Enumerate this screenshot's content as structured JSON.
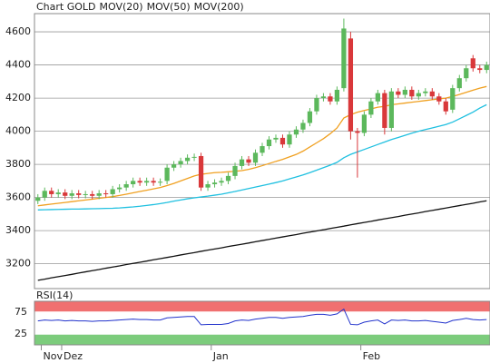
{
  "chart_data": [
    {
      "type": "candlestick",
      "title": "Chart GOLD",
      "title_color": "#e0452a",
      "categories": [
        null,
        "Nov",
        null,
        null,
        "Dez",
        null,
        null,
        null,
        null,
        null,
        null,
        null,
        null,
        null,
        null,
        null,
        null,
        null,
        null,
        null,
        null,
        null,
        null,
        null,
        null,
        null,
        "Jan",
        null,
        null,
        null,
        null,
        null,
        null,
        null,
        null,
        null,
        null,
        null,
        null,
        null,
        null,
        null,
        null,
        null,
        null,
        null,
        null,
        null,
        "Feb",
        null,
        null,
        null,
        null,
        null,
        null,
        null,
        null,
        null,
        null,
        null,
        null,
        null,
        null,
        null,
        null,
        null,
        null
      ],
      "open": [
        3580,
        3600,
        3640,
        3620,
        3630,
        3610,
        3625,
        3615,
        3620,
        3610,
        3625,
        3620,
        3650,
        3660,
        3680,
        3700,
        3690,
        3700,
        3690,
        3700,
        3780,
        3800,
        3820,
        3840,
        3850,
        3660,
        3680,
        3690,
        3700,
        3730,
        3790,
        3830,
        3810,
        3870,
        3910,
        3950,
        3960,
        3920,
        3980,
        4010,
        4050,
        4120,
        4200,
        4210,
        4180,
        4260,
        4560,
        4000,
        3990,
        4100,
        4180,
        4230,
        4020,
        4240,
        4220,
        4250,
        4210,
        4230,
        4240,
        4210,
        4180,
        4130,
        4260,
        4320,
        4440,
        4380,
        4370
      ],
      "high": [
        3620,
        3660,
        3660,
        3650,
        3650,
        3645,
        3645,
        3640,
        3640,
        3645,
        3645,
        3670,
        3680,
        3700,
        3720,
        3720,
        3720,
        3720,
        3715,
        3800,
        3820,
        3840,
        3860,
        3865,
        3870,
        3700,
        3710,
        3720,
        3750,
        3810,
        3850,
        3850,
        3890,
        3930,
        3970,
        3980,
        3980,
        4000,
        4030,
        4070,
        4140,
        4220,
        4230,
        4230,
        4270,
        4680,
        4600,
        4020,
        4120,
        4200,
        4250,
        4250,
        4260,
        4260,
        4270,
        4270,
        4250,
        4260,
        4260,
        4230,
        4200,
        4280,
        4340,
        4400,
        4460,
        4400,
        4420
      ],
      "low": [
        3560,
        3580,
        3600,
        3600,
        3590,
        3590,
        3595,
        3595,
        3590,
        3590,
        3600,
        3600,
        3630,
        3640,
        3660,
        3670,
        3670,
        3670,
        3670,
        3680,
        3760,
        3780,
        3800,
        3820,
        3640,
        3640,
        3660,
        3670,
        3680,
        3710,
        3770,
        3790,
        3790,
        3850,
        3890,
        3930,
        3900,
        3900,
        3960,
        3990,
        4030,
        4100,
        4180,
        4160,
        4160,
        4240,
        3950,
        3720,
        3970,
        4080,
        4160,
        3980,
        4000,
        4200,
        4200,
        4190,
        4190,
        4210,
        4190,
        4160,
        4100,
        4110,
        4240,
        4300,
        4360,
        4350,
        4350
      ],
      "close": [
        3600,
        3640,
        3620,
        3630,
        3610,
        3625,
        3615,
        3620,
        3610,
        3625,
        3620,
        3650,
        3660,
        3680,
        3700,
        3690,
        3700,
        3690,
        3695,
        3780,
        3800,
        3820,
        3840,
        3845,
        3660,
        3680,
        3690,
        3700,
        3730,
        3790,
        3830,
        3810,
        3870,
        3910,
        3950,
        3960,
        3920,
        3980,
        4010,
        4050,
        4120,
        4200,
        4210,
        4180,
        4250,
        4620,
        4000,
        3990,
        4100,
        4180,
        4230,
        4020,
        4240,
        4220,
        4250,
        4210,
        4230,
        4240,
        4210,
        4180,
        4120,
        4260,
        4320,
        4380,
        4380,
        4370,
        4400
      ],
      "up_color": "#5cb85c",
      "down_color": "#d9383a",
      "series": [
        {
          "name": "MOV(20)",
          "color": "#f0a020",
          "values": [
            3550,
            3555,
            3560,
            3565,
            3570,
            3575,
            3580,
            3585,
            3590,
            3595,
            3600,
            3605,
            3612,
            3620,
            3628,
            3636,
            3644,
            3652,
            3660,
            3672,
            3685,
            3700,
            3715,
            3730,
            3740,
            3745,
            3750,
            3752,
            3755,
            3758,
            3762,
            3770,
            3780,
            3792,
            3805,
            3818,
            3830,
            3845,
            3860,
            3880,
            3905,
            3930,
            3955,
            3985,
            4020,
            4080,
            4100,
            4115,
            4125,
            4135,
            4145,
            4150,
            4160,
            4165,
            4170,
            4175,
            4180,
            4185,
            4190,
            4195,
            4200,
            4210,
            4222,
            4235,
            4248,
            4260,
            4270
          ]
        },
        {
          "name": "MOV(50)",
          "color": "#20c0e0",
          "values": [
            3525,
            3526,
            3527,
            3528,
            3529,
            3530,
            3530,
            3531,
            3532,
            3533,
            3534,
            3535,
            3537,
            3540,
            3543,
            3547,
            3552,
            3557,
            3563,
            3570,
            3578,
            3585,
            3592,
            3598,
            3603,
            3608,
            3614,
            3620,
            3628,
            3636,
            3645,
            3654,
            3663,
            3672,
            3681,
            3690,
            3700,
            3712,
            3724,
            3736,
            3750,
            3765,
            3780,
            3795,
            3812,
            3840,
            3860,
            3875,
            3890,
            3905,
            3920,
            3935,
            3950,
            3962,
            3975,
            3988,
            4000,
            4010,
            4020,
            4030,
            4040,
            4055,
            4075,
            4095,
            4115,
            4140,
            4160
          ]
        },
        {
          "name": "MOV(200)",
          "color": "#111111",
          "values": [
            3100,
            3107,
            3115,
            3122,
            3129,
            3136,
            3144,
            3151,
            3158,
            3165,
            3173,
            3180,
            3187,
            3195,
            3202,
            3209,
            3216,
            3224,
            3231,
            3238,
            3245,
            3253,
            3260,
            3267,
            3275,
            3282,
            3289,
            3296,
            3304,
            3311,
            3318,
            3325,
            3333,
            3340,
            3347,
            3355,
            3362,
            3369,
            3376,
            3384,
            3391,
            3398,
            3405,
            3413,
            3420,
            3427,
            3435,
            3442,
            3449,
            3456,
            3464,
            3471,
            3478,
            3485,
            3493,
            3500,
            3507,
            3515,
            3522,
            3529,
            3536,
            3544,
            3551,
            3558,
            3565,
            3573,
            3580
          ]
        }
      ],
      "ylim": [
        3050,
        4710
      ],
      "yticks": [
        3200,
        3400,
        3600,
        3800,
        4000,
        4200,
        4400,
        4600
      ],
      "grid": true
    },
    {
      "type": "line",
      "title": "RSI(14)",
      "color": "#2233cc",
      "values": [
        55,
        57,
        56,
        57,
        55,
        56,
        55,
        55,
        54,
        55,
        55,
        56,
        57,
        58,
        59,
        58,
        58,
        57,
        57,
        62,
        63,
        64,
        65,
        65,
        46,
        47,
        47,
        47,
        49,
        55,
        57,
        56,
        59,
        61,
        63,
        63,
        61,
        63,
        64,
        65,
        68,
        70,
        70,
        68,
        71,
        82,
        47,
        46,
        52,
        55,
        57,
        48,
        57,
        56,
        57,
        55,
        55,
        56,
        54,
        52,
        50,
        56,
        58,
        61,
        58,
        57,
        58
      ],
      "ylim": [
        0,
        100
      ],
      "yticks": [
        25,
        75
      ],
      "upper_zone_color": "#f07070",
      "lower_zone_color": "#7ccc7c"
    }
  ]
}
